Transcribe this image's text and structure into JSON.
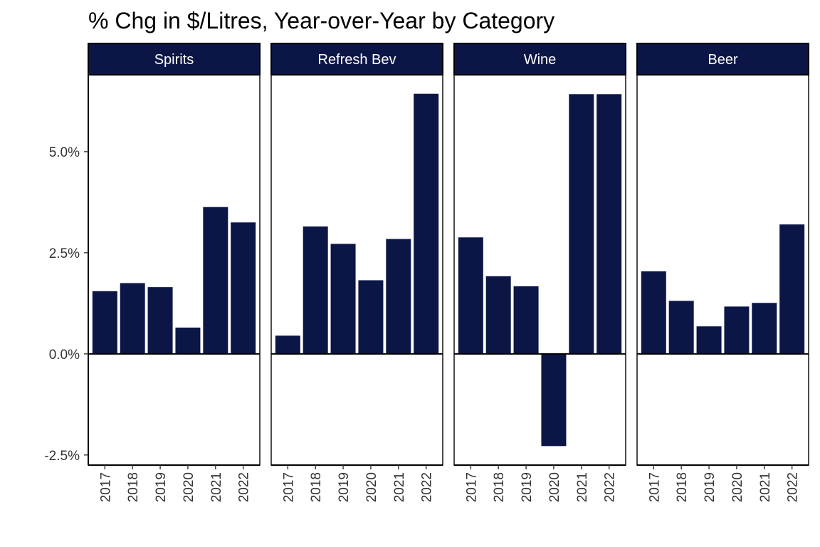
{
  "chart_data": {
    "type": "bar",
    "title": "% Chg in $/Litres, Year-over-Year by Category",
    "xlabel": "",
    "ylabel": "",
    "ylim": [
      -2.75,
      6.9
    ],
    "yticks": [
      -2.5,
      0.0,
      2.5,
      5.0
    ],
    "ytick_labels": [
      "-2.5%",
      "0.0%",
      "2.5%",
      "5.0%"
    ],
    "categories": [
      "2017",
      "2018",
      "2019",
      "2020",
      "2021",
      "2022"
    ],
    "bar_color": "#0b1647",
    "strip_color": "#0b1647",
    "facets": [
      {
        "name": "Spirits",
        "values": [
          1.55,
          1.75,
          1.65,
          0.65,
          3.63,
          3.25
        ]
      },
      {
        "name": "Refresh Bev",
        "values": [
          0.45,
          3.15,
          2.72,
          1.82,
          2.84,
          6.43
        ]
      },
      {
        "name": "Wine",
        "values": [
          2.88,
          1.92,
          1.67,
          -2.28,
          6.42,
          6.42
        ]
      },
      {
        "name": "Beer",
        "values": [
          2.04,
          1.31,
          0.68,
          1.17,
          1.26,
          3.2
        ]
      }
    ]
  }
}
